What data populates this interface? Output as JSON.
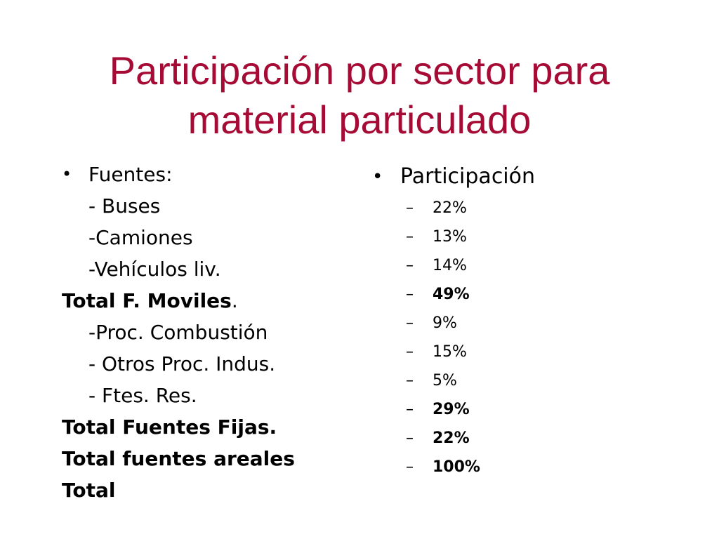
{
  "title": {
    "line1": "Participación por sector para",
    "line2": "material particulado"
  },
  "left": {
    "bullet": "•",
    "heading": "Fuentes:",
    "items": [
      {
        "text": "- Buses",
        "kind": "item"
      },
      {
        "text": "-Camiones",
        "kind": "item"
      },
      {
        "text": "-Vehículos liv.",
        "kind": "item"
      },
      {
        "text": "Total  F. Moviles",
        "suffix": ".",
        "kind": "total"
      },
      {
        "text": "-Proc. Combustión",
        "kind": "item"
      },
      {
        "text": "- Otros Proc. Indus.",
        "kind": "item"
      },
      {
        "text": "- Ftes. Res.",
        "kind": "item"
      },
      {
        "text": "Total Fuentes Fijas.",
        "kind": "total"
      },
      {
        "text": "Total fuentes areales",
        "kind": "total"
      },
      {
        "text": "Total",
        "kind": "total"
      }
    ]
  },
  "right": {
    "bullet": "•",
    "heading": "Participación",
    "dash": "–",
    "values": [
      {
        "text": "22%",
        "bold": false
      },
      {
        "text": "13%",
        "bold": false
      },
      {
        "text": "14%",
        "bold": false
      },
      {
        "text": "49%",
        "bold": true
      },
      {
        "text": "9%",
        "bold": false
      },
      {
        "text": "15%",
        "bold": false
      },
      {
        "text": "5%",
        "bold": false
      },
      {
        "text": "29%",
        "bold": true
      },
      {
        "text": "22%",
        "bold": true
      },
      {
        "text": "100%",
        "bold": true
      }
    ]
  },
  "colors": {
    "title": "#a50b34",
    "text": "#000000",
    "background": "#ffffff"
  }
}
